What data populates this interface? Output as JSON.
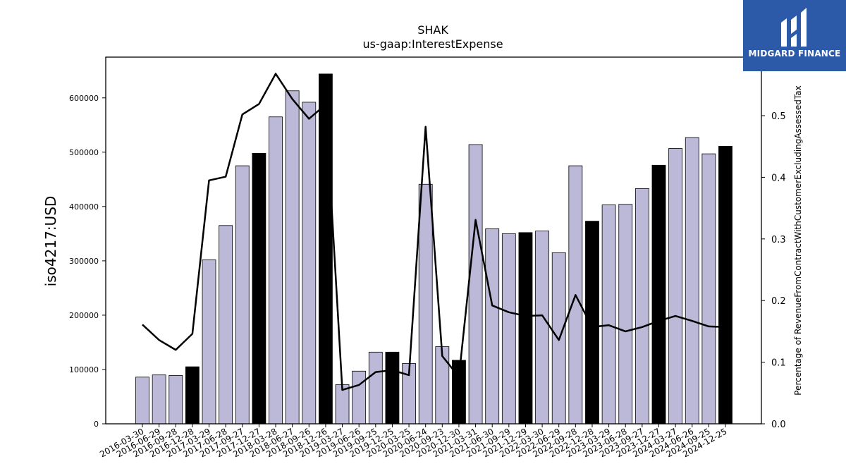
{
  "logo": {
    "text": "MIDGARD FINANCE"
  },
  "chart_data": {
    "type": "bar",
    "title": "SHAK",
    "subtitle": "us-gaap:InterestExpense",
    "ylabel": "iso4217:USD",
    "y2label": "Percentage of RevenueFromContractWithCustomerExcludingAssessedTax",
    "ylim": [
      0,
      675000
    ],
    "y2lim": [
      0,
      0.595
    ],
    "yticks": [
      0,
      100000,
      200000,
      300000,
      400000,
      500000,
      600000
    ],
    "y2ticks": [
      "0.0",
      "0.1",
      "0.2",
      "0.3",
      "0.4",
      "0.5"
    ],
    "categories": [
      "2016-03-30",
      "2016-06-29",
      "2016-09-28",
      "2016-12-28",
      "2017-03-29",
      "2017-06-28",
      "2017-09-27",
      "2017-12-27",
      "2018-03-28",
      "2018-06-27",
      "2018-09-26",
      "2018-12-26",
      "2019-03-27",
      "2019-06-26",
      "2019-09-25",
      "2019-12-25",
      "2020-03-25",
      "2020-06-24",
      "2020-09-23",
      "2020-12-30",
      "2021-03-31",
      "2021-06-30",
      "2021-09-29",
      "2021-12-29",
      "2022-03-30",
      "2022-06-29",
      "2022-09-28",
      "2022-12-28",
      "2023-03-29",
      "2023-06-28",
      "2023-09-27",
      "2023-12-27",
      "2024-03-27",
      "2024-06-26",
      "2024-09-25",
      "2024-12-25"
    ],
    "series": [
      {
        "kind": "bar",
        "values": [
          86000,
          90000,
          89000,
          105000,
          302000,
          365000,
          475000,
          498000,
          565000,
          613000,
          592000,
          644000,
          72000,
          97000,
          132000,
          132000,
          111000,
          441000,
          142000,
          117000,
          514000,
          359000,
          350000,
          352000,
          355000,
          315000,
          475000,
          373000,
          403000,
          404000,
          433000,
          476000,
          507000,
          527000,
          497000,
          511000
        ],
        "highlight": [
          false,
          false,
          false,
          true,
          false,
          false,
          false,
          true,
          false,
          false,
          false,
          true,
          false,
          false,
          false,
          true,
          false,
          false,
          false,
          true,
          false,
          false,
          false,
          true,
          false,
          false,
          false,
          true,
          false,
          false,
          false,
          true,
          false,
          false,
          false,
          true
        ]
      },
      {
        "kind": "line",
        "axis": "right",
        "values": [
          0.161,
          0.136,
          0.12,
          0.146,
          0.395,
          0.401,
          0.502,
          0.519,
          0.568,
          0.527,
          0.495,
          0.518,
          0.055,
          0.063,
          0.084,
          0.087,
          0.079,
          0.482,
          0.11,
          0.076,
          0.331,
          0.192,
          0.181,
          0.175,
          0.176,
          0.136,
          0.209,
          0.157,
          0.16,
          0.15,
          0.157,
          0.167,
          0.175,
          0.167,
          0.158,
          0.157
        ]
      }
    ],
    "colors": {
      "bar": "#bcb8d8",
      "bar_highlight": "#000000",
      "line": "#000000"
    }
  }
}
